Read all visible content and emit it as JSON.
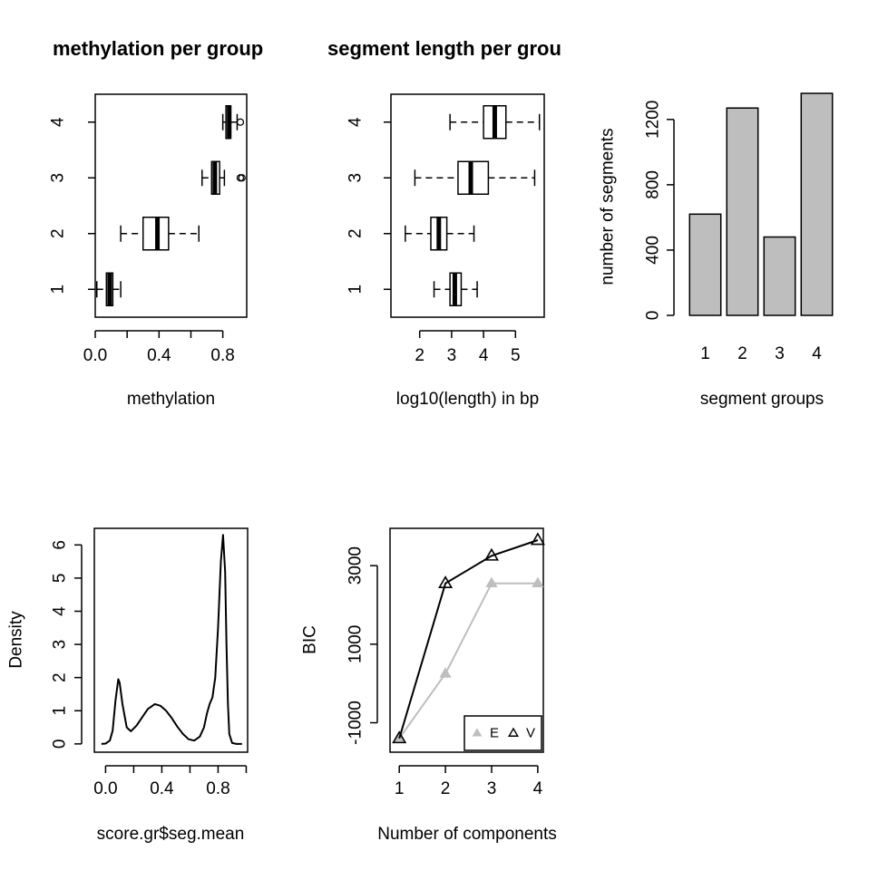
{
  "chart_data": [
    {
      "type": "boxplot",
      "orientation": "horizontal",
      "title": "methylation per group",
      "xlabel": "methylation",
      "ylabel": "",
      "xlim": [
        0.0,
        0.95
      ],
      "xticks": [
        0.0,
        0.2,
        0.4,
        0.6,
        0.8
      ],
      "xtick_labels": [
        "0.0",
        "",
        "0.4",
        "",
        "0.8"
      ],
      "categories": [
        "1",
        "2",
        "3",
        "4"
      ],
      "boxes": [
        {
          "group": "1",
          "lower": 0.01,
          "q1": 0.07,
          "median": 0.09,
          "q3": 0.11,
          "upper": 0.16,
          "outliers": []
        },
        {
          "group": "2",
          "lower": 0.16,
          "q1": 0.3,
          "median": 0.39,
          "q3": 0.46,
          "upper": 0.65,
          "outliers": []
        },
        {
          "group": "3",
          "lower": 0.67,
          "q1": 0.73,
          "median": 0.75,
          "q3": 0.78,
          "upper": 0.81,
          "outliers": [
            0.91,
            0.92
          ]
        },
        {
          "group": "4",
          "lower": 0.8,
          "q1": 0.82,
          "median": 0.84,
          "q3": 0.85,
          "upper": 0.89,
          "outliers": [
            0.91
          ]
        }
      ]
    },
    {
      "type": "boxplot",
      "orientation": "horizontal",
      "title": "segment length per grou",
      "xlabel": "log10(length) in bp",
      "ylabel": "",
      "xlim": [
        1.1,
        5.9
      ],
      "xticks": [
        2,
        3,
        4,
        5
      ],
      "xtick_labels": [
        "2",
        "3",
        "4",
        "5"
      ],
      "categories": [
        "1",
        "2",
        "3",
        "4"
      ],
      "boxes": [
        {
          "group": "1",
          "lower": 2.45,
          "q1": 2.95,
          "median": 3.1,
          "q3": 3.3,
          "upper": 3.8,
          "outliers": []
        },
        {
          "group": "2",
          "lower": 1.55,
          "q1": 2.35,
          "median": 2.6,
          "q3": 2.85,
          "upper": 3.7,
          "outliers": []
        },
        {
          "group": "3",
          "lower": 1.85,
          "q1": 3.2,
          "median": 3.6,
          "q3": 4.15,
          "upper": 5.6,
          "outliers": []
        },
        {
          "group": "4",
          "lower": 2.95,
          "q1": 4.0,
          "median": 4.35,
          "q3": 4.7,
          "upper": 5.75,
          "outliers": []
        }
      ]
    },
    {
      "type": "bar",
      "title": "",
      "xlabel": "segment groups",
      "ylabel": "number of segments",
      "categories": [
        "1",
        "2",
        "3",
        "4"
      ],
      "values": [
        620,
        1270,
        480,
        1360
      ],
      "ylim": [
        0,
        1360
      ],
      "yticks": [
        0,
        400,
        800,
        1200
      ],
      "bar_color": "#bebebe"
    },
    {
      "type": "line",
      "subtype": "density",
      "title": "",
      "xlabel": "score.gr$seg.mean",
      "ylabel": "Density",
      "xlim": [
        -0.08,
        1.01
      ],
      "ylim": [
        -0.25,
        6.5
      ],
      "xticks": [
        0.0,
        0.2,
        0.4,
        0.6,
        0.8,
        1.0
      ],
      "xtick_labels": [
        "0.0",
        "",
        "0.4",
        "",
        "0.8",
        ""
      ],
      "yticks": [
        0,
        1,
        2,
        3,
        4,
        5,
        6
      ],
      "x": [
        -0.03,
        0.0,
        0.03,
        0.05,
        0.07,
        0.09,
        0.1,
        0.12,
        0.15,
        0.18,
        0.22,
        0.26,
        0.3,
        0.35,
        0.39,
        0.43,
        0.47,
        0.51,
        0.55,
        0.59,
        0.63,
        0.67,
        0.7,
        0.72,
        0.74,
        0.76,
        0.78,
        0.8,
        0.82,
        0.835,
        0.85,
        0.86,
        0.87,
        0.88,
        0.9,
        0.93,
        0.97
      ],
      "y": [
        0.0,
        0.01,
        0.1,
        0.4,
        1.3,
        1.95,
        1.85,
        1.2,
        0.5,
        0.38,
        0.55,
        0.8,
        1.05,
        1.2,
        1.15,
        1.0,
        0.78,
        0.52,
        0.3,
        0.14,
        0.1,
        0.22,
        0.5,
        0.9,
        1.2,
        1.4,
        2.0,
        3.5,
        5.5,
        6.3,
        5.2,
        3.0,
        1.2,
        0.3,
        0.03,
        0.0,
        0.0
      ]
    },
    {
      "type": "line",
      "title": "",
      "xlabel": "Number of components",
      "ylabel": "BIC",
      "xlim": [
        0.8,
        4.12
      ],
      "ylim": [
        -1750,
        3950
      ],
      "xticks": [
        1,
        2,
        3,
        4
      ],
      "yticks": [
        -1000,
        1000,
        3000
      ],
      "ytick_labels": [
        "-1000",
        "1000",
        "3000"
      ],
      "x": [
        1,
        2,
        3,
        4
      ],
      "series": [
        {
          "name": "E",
          "values": [
            -1400,
            250,
            2550,
            2550
          ],
          "color": "#bebebe",
          "marker": "filled-triangle"
        },
        {
          "name": "V",
          "values": [
            -1400,
            2550,
            3250,
            3650
          ],
          "color": "#000000",
          "marker": "open-triangle"
        }
      ],
      "legend_position": "bottom-right"
    }
  ]
}
